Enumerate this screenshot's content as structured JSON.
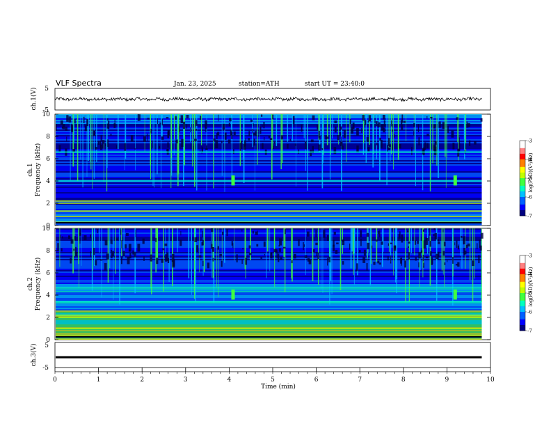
{
  "header": {
    "title": "VLF  Spectra",
    "date": "Jan. 23, 2025",
    "station": "station=ATH",
    "start": "start  UT  =   23:40:0"
  },
  "colors": {
    "colormap": [
      "#000000",
      "#000080",
      "#0000ff",
      "#0060ff",
      "#00c0ff",
      "#00ffc0",
      "#40ff40",
      "#c0ff00",
      "#ffff00",
      "#ff8000",
      "#ff0000",
      "#ff8080",
      "#ffffff"
    ],
    "trace": "#000000"
  },
  "chart_data": [
    {
      "type": "line",
      "name": "ch1",
      "ylabel": "ch.1(V)",
      "ylim": [
        -5,
        5
      ],
      "yticks": [
        "5",
        "-5"
      ],
      "xlim": [
        0,
        10
      ],
      "data_range_min": [
        0,
        9.8
      ],
      "approx_level": 0,
      "approx_amplitude": 0.7
    },
    {
      "type": "heatmap",
      "name": "ch1-spectrogram",
      "ylabel": "ch.1\nFrequency  (kHz)",
      "ylim": [
        0,
        10
      ],
      "yticks": [
        "0",
        "2",
        "4",
        "6",
        "8",
        "10"
      ],
      "xlim": [
        0,
        9.8
      ],
      "colorbar": {
        "label": "log(PSD)(V²/Hz)",
        "range": [
          -7,
          -3
        ],
        "ticks": [
          "-3",
          "-4",
          "-5",
          "-6",
          "-7"
        ]
      },
      "bands_khz": [
        0.3,
        0.8,
        1.3,
        2.0,
        2.2,
        4.0,
        6.6
      ],
      "bursts_min": [
        4.05,
        9.15
      ]
    },
    {
      "type": "heatmap",
      "name": "ch2-spectrogram",
      "ylabel": "ch.2\nFrequency  (kHz)",
      "ylim": [
        0,
        10
      ],
      "yticks": [
        "0",
        "2",
        "4",
        "6",
        "8",
        "10"
      ],
      "xlim": [
        0,
        9.8
      ],
      "colorbar": {
        "label": "log(PSD)(V²/Hz)",
        "range": [
          -7,
          -3
        ],
        "ticks": [
          "-3",
          "-4",
          "-5",
          "-6",
          "-7"
        ]
      },
      "bands_khz": [
        0.3,
        1.0,
        2.0,
        2.2,
        3.4,
        4.7
      ],
      "bursts_min": [
        4.05,
        9.15
      ]
    },
    {
      "type": "line",
      "name": "ch3",
      "ylabel": "ch.3(V)",
      "ylim": [
        -5,
        5
      ],
      "yticks": [
        "5",
        "-5"
      ],
      "xlim": [
        0,
        10
      ],
      "data_range_min": [
        0,
        9.8
      ],
      "approx_level": -0.9
    }
  ],
  "xaxis": {
    "label": "Time  (min)",
    "ticks": [
      "0",
      "1",
      "2",
      "3",
      "4",
      "5",
      "6",
      "7",
      "8",
      "9",
      "10"
    ]
  }
}
